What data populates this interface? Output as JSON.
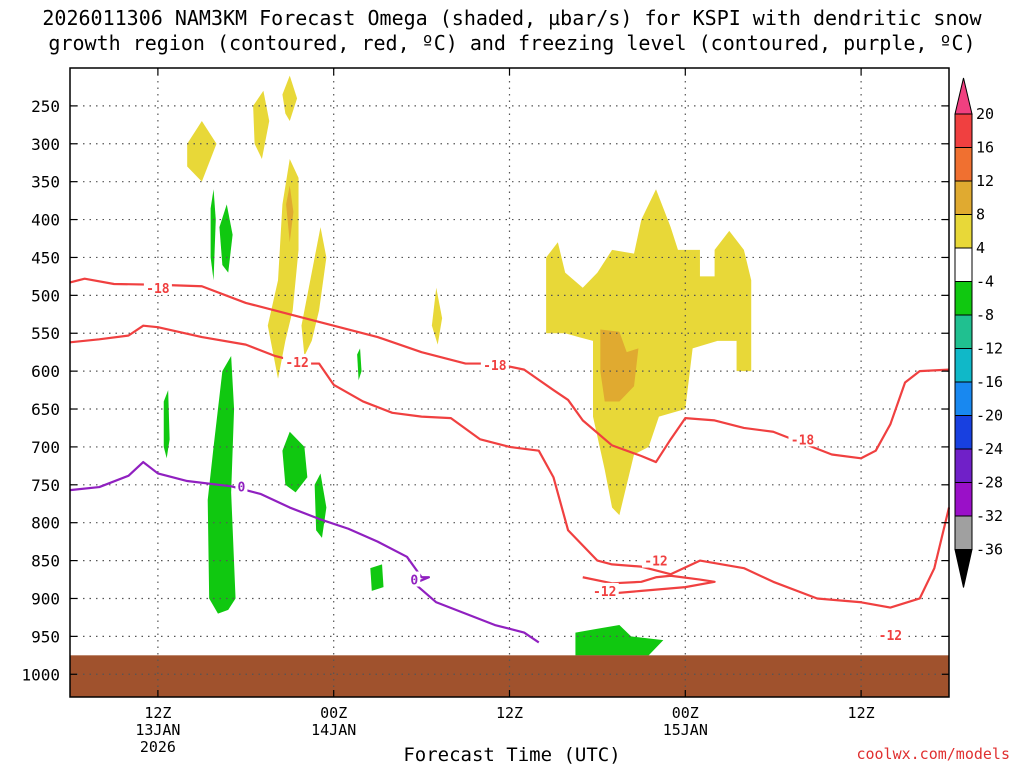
{
  "title_line1": "2026011306 NAM3KM Forecast Omega (shaded, µbar/s) for KSPI with dendritic snow",
  "title_line2": "growth region (contoured, red, ºC) and freezing level (contoured, purple, ºC)",
  "xlabel": "Forecast Time (UTC)",
  "credit": "coolwx.com/models",
  "colors": {
    "snow_growth": "#f04040",
    "freezing": "#9020c0",
    "ground": "#a0522d",
    "omega_pos_4": "#e8d838",
    "omega_pos_8": "#e0aa30",
    "omega_neg_4": "#10c810"
  },
  "chart_data": {
    "type": "heatmap",
    "x_axis": {
      "range_hours": [
        -6,
        54
      ],
      "ticks": [
        {
          "hour": 0,
          "label": "12Z",
          "label2": "13JAN",
          "label3": "2026"
        },
        {
          "hour": 12,
          "label": "00Z",
          "label2": "14JAN",
          "label3": ""
        },
        {
          "hour": 24,
          "label": "12Z",
          "label2": "",
          "label3": ""
        },
        {
          "hour": 36,
          "label": "00Z",
          "label2": "15JAN",
          "label3": ""
        },
        {
          "hour": 48,
          "label": "12Z",
          "label2": "",
          "label3": ""
        }
      ]
    },
    "y_axis": {
      "unit": "hPa",
      "scale": "pressure",
      "range": [
        200,
        1030
      ],
      "ticks": [
        250,
        300,
        350,
        400,
        450,
        500,
        550,
        600,
        650,
        700,
        750,
        800,
        850,
        900,
        950,
        1000
      ],
      "grid": "dotted"
    },
    "colorbar": {
      "labels": [
        20,
        16,
        12,
        8,
        4,
        -4,
        -8,
        -12,
        -16,
        -20,
        -24,
        -28,
        -32,
        -36
      ],
      "colors": [
        "#f04080",
        "#f04040",
        "#f07030",
        "#e0aa30",
        "#e8d838",
        "#ffffff",
        "#10c810",
        "#20c090",
        "#10b8c8",
        "#1888f0",
        "#1840e0",
        "#7020c8",
        "#9a10c8",
        "#a0a0a0",
        "#000000"
      ]
    },
    "contour_labels": [
      {
        "text": "-18",
        "hour": 0,
        "p": 490,
        "color": "snow_growth"
      },
      {
        "text": "-12",
        "hour": 9.5,
        "p": 588,
        "color": "snow_growth"
      },
      {
        "text": "-18",
        "hour": 23,
        "p": 592,
        "color": "snow_growth"
      },
      {
        "text": "-18",
        "hour": 44,
        "p": 690,
        "color": "snow_growth"
      },
      {
        "text": "-12",
        "hour": 34,
        "p": 850,
        "color": "snow_growth"
      },
      {
        "text": "-12",
        "hour": 30.5,
        "p": 890,
        "color": "snow_growth"
      },
      {
        "text": "-12",
        "hour": 50,
        "p": 948,
        "color": "snow_growth"
      },
      {
        "text": "0",
        "hour": 5.7,
        "p": 752,
        "color": "freezing"
      },
      {
        "text": "0",
        "hour": 17.5,
        "p": 875,
        "color": "freezing"
      }
    ],
    "contours": [
      {
        "name": "-18 upper",
        "color": "snow_growth",
        "points": [
          [
            -6,
            483
          ],
          [
            -5,
            478
          ],
          [
            -3,
            485
          ],
          [
            0,
            486
          ],
          [
            3,
            488
          ],
          [
            6,
            510
          ],
          [
            9,
            525
          ],
          [
            12,
            540
          ],
          [
            15,
            555
          ],
          [
            18,
            575
          ],
          [
            21,
            590
          ],
          [
            23,
            590
          ],
          [
            25,
            598
          ],
          [
            27,
            625
          ],
          [
            28,
            638
          ],
          [
            29,
            665
          ],
          [
            31,
            698
          ],
          [
            33,
            712
          ],
          [
            34,
            720
          ],
          [
            35,
            690
          ],
          [
            36,
            662
          ],
          [
            38,
            665
          ],
          [
            40,
            675
          ],
          [
            42,
            680
          ],
          [
            44,
            695
          ],
          [
            46,
            710
          ],
          [
            48,
            715
          ],
          [
            49,
            705
          ],
          [
            50,
            670
          ],
          [
            51,
            615
          ],
          [
            52,
            600
          ],
          [
            54,
            598
          ]
        ]
      },
      {
        "name": "-12",
        "color": "snow_growth",
        "points": [
          [
            -6,
            562
          ],
          [
            -4,
            558
          ],
          [
            -2,
            553
          ],
          [
            -1,
            540
          ],
          [
            0,
            542
          ],
          [
            3,
            555
          ],
          [
            6,
            565
          ],
          [
            8,
            580
          ],
          [
            10,
            590
          ],
          [
            11,
            590
          ],
          [
            12,
            618
          ],
          [
            14,
            640
          ],
          [
            16,
            655
          ],
          [
            18,
            660
          ],
          [
            20,
            662
          ],
          [
            22,
            690
          ],
          [
            24,
            700
          ],
          [
            26,
            705
          ],
          [
            27,
            740
          ],
          [
            28,
            810
          ],
          [
            30,
            850
          ],
          [
            31,
            855
          ],
          [
            33,
            858
          ],
          [
            35,
            868
          ],
          [
            37,
            850
          ],
          [
            40,
            860
          ],
          [
            42,
            878
          ],
          [
            45,
            900
          ],
          [
            48,
            905
          ],
          [
            50,
            912
          ],
          [
            52,
            900
          ],
          [
            53,
            860
          ],
          [
            53.5,
            820
          ],
          [
            54,
            780
          ]
        ]
      },
      {
        "name": "-12 lower",
        "color": "snow_growth",
        "points": [
          [
            29,
            872
          ],
          [
            31,
            880
          ],
          [
            33,
            878
          ],
          [
            34,
            872
          ],
          [
            35,
            870
          ],
          [
            37,
            875
          ],
          [
            38,
            878
          ],
          [
            36,
            885
          ],
          [
            33,
            890
          ],
          [
            30,
            895
          ]
        ]
      },
      {
        "name": "freezing 0",
        "color": "freezing",
        "points": [
          [
            -6,
            757
          ],
          [
            -4,
            753
          ],
          [
            -2,
            738
          ],
          [
            -1,
            720
          ],
          [
            0,
            735
          ],
          [
            2,
            745
          ],
          [
            5,
            752
          ],
          [
            7,
            762
          ],
          [
            9,
            780
          ],
          [
            11,
            795
          ],
          [
            13,
            808
          ],
          [
            15,
            825
          ],
          [
            17,
            845
          ],
          [
            18,
            872
          ],
          [
            18.5,
            872
          ],
          [
            17.5,
            880
          ],
          [
            19,
            905
          ],
          [
            21,
            920
          ],
          [
            23,
            935
          ],
          [
            25,
            945
          ],
          [
            26,
            958
          ]
        ]
      }
    ],
    "shaded_regions": [
      {
        "level": "omega_pos_4",
        "polygon": [
          [
            2,
            300
          ],
          [
            3,
            270
          ],
          [
            4,
            300
          ],
          [
            3,
            350
          ],
          [
            2,
            330
          ]
        ]
      },
      {
        "level": "omega_pos_4",
        "polygon": [
          [
            6.5,
            250
          ],
          [
            7.2,
            230
          ],
          [
            7.6,
            270
          ],
          [
            7.1,
            320
          ],
          [
            6.6,
            300
          ]
        ]
      },
      {
        "level": "omega_pos_4",
        "polygon": [
          [
            8.5,
            235
          ],
          [
            9.0,
            210
          ],
          [
            9.5,
            240
          ],
          [
            9.0,
            270
          ],
          [
            8.7,
            260
          ]
        ]
      },
      {
        "level": "omega_pos_4",
        "polygon": [
          [
            7.5,
            540
          ],
          [
            8.2,
            480
          ],
          [
            8.5,
            380
          ],
          [
            9.0,
            320
          ],
          [
            9.6,
            345
          ],
          [
            9.6,
            440
          ],
          [
            9.2,
            520
          ],
          [
            8.7,
            560
          ],
          [
            8.2,
            610
          ]
        ]
      },
      {
        "level": "omega_pos_4",
        "polygon": [
          [
            9.8,
            540
          ],
          [
            10.5,
            470
          ],
          [
            11.1,
            410
          ],
          [
            11.5,
            450
          ],
          [
            11.0,
            520
          ],
          [
            10.5,
            560
          ],
          [
            10.0,
            580
          ]
        ]
      },
      {
        "level": "omega_pos_4",
        "polygon": [
          [
            18.7,
            540
          ],
          [
            19.0,
            490
          ],
          [
            19.4,
            530
          ],
          [
            19.1,
            565
          ]
        ]
      },
      {
        "level": "omega_pos_4",
        "polygon": [
          [
            26.5,
            550
          ],
          [
            26.5,
            450
          ],
          [
            27.3,
            430
          ],
          [
            27.8,
            470
          ],
          [
            29,
            490
          ],
          [
            30,
            470
          ],
          [
            31,
            440
          ],
          [
            32.5,
            445
          ],
          [
            33,
            400
          ],
          [
            34,
            360
          ],
          [
            35,
            410
          ],
          [
            35.5,
            440
          ],
          [
            36,
            440
          ],
          [
            37,
            440
          ],
          [
            37,
            475
          ],
          [
            38,
            475
          ],
          [
            38,
            440
          ],
          [
            39,
            415
          ],
          [
            40,
            440
          ],
          [
            40.5,
            480
          ],
          [
            40.5,
            600
          ],
          [
            39.5,
            600
          ],
          [
            39.5,
            560
          ],
          [
            38.2,
            560
          ],
          [
            36.5,
            570
          ],
          [
            36,
            650
          ],
          [
            34.2,
            660
          ],
          [
            33.5,
            700
          ],
          [
            32.5,
            710
          ],
          [
            31.5,
            790
          ],
          [
            31,
            780
          ],
          [
            30.5,
            730
          ],
          [
            29.7,
            660
          ],
          [
            29.7,
            560
          ],
          [
            28.7,
            555
          ],
          [
            27.8,
            550
          ]
        ]
      },
      {
        "level": "omega_pos_8",
        "polygon": [
          [
            30.2,
            545
          ],
          [
            31.5,
            548
          ],
          [
            32,
            575
          ],
          [
            32.8,
            570
          ],
          [
            32.5,
            620
          ],
          [
            31.5,
            640
          ],
          [
            30.5,
            640
          ],
          [
            30.2,
            600
          ]
        ]
      },
      {
        "level": "omega_pos_8",
        "polygon": [
          [
            8.75,
            380
          ],
          [
            9.0,
            355
          ],
          [
            9.25,
            390
          ],
          [
            9.0,
            430
          ]
        ]
      },
      {
        "level": "omega_neg_4",
        "polygon": [
          [
            4.2,
            410
          ],
          [
            4.7,
            380
          ],
          [
            5.1,
            420
          ],
          [
            4.8,
            470
          ],
          [
            4.4,
            460
          ]
        ]
      },
      {
        "level": "omega_neg_4",
        "polygon": [
          [
            3.6,
            385
          ],
          [
            3.8,
            360
          ],
          [
            3.95,
            400
          ],
          [
            3.8,
            480
          ],
          [
            3.6,
            450
          ]
        ]
      },
      {
        "level": "omega_neg_4",
        "polygon": [
          [
            0.4,
            640
          ],
          [
            0.7,
            625
          ],
          [
            0.8,
            690
          ],
          [
            0.6,
            715
          ],
          [
            0.4,
            700
          ]
        ]
      },
      {
        "level": "omega_neg_4",
        "polygon": [
          [
            3.4,
            770
          ],
          [
            3.8,
            700
          ],
          [
            4.4,
            600
          ],
          [
            5.0,
            580
          ],
          [
            5.2,
            650
          ],
          [
            5.0,
            760
          ],
          [
            5.3,
            900
          ],
          [
            4.8,
            915
          ],
          [
            4.1,
            920
          ],
          [
            3.5,
            900
          ]
        ]
      },
      {
        "level": "omega_neg_4",
        "polygon": [
          [
            8.5,
            705
          ],
          [
            9.0,
            680
          ],
          [
            10.0,
            700
          ],
          [
            10.2,
            740
          ],
          [
            9.4,
            760
          ],
          [
            8.7,
            750
          ]
        ]
      },
      {
        "level": "omega_neg_4",
        "polygon": [
          [
            10.7,
            750
          ],
          [
            11.1,
            735
          ],
          [
            11.5,
            780
          ],
          [
            11.2,
            820
          ],
          [
            10.8,
            810
          ]
        ]
      },
      {
        "level": "omega_neg_4",
        "polygon": [
          [
            13.6,
            578
          ],
          [
            13.8,
            570
          ],
          [
            13.9,
            600
          ],
          [
            13.7,
            612
          ]
        ]
      },
      {
        "level": "omega_neg_4",
        "polygon": [
          [
            14.5,
            860
          ],
          [
            15.3,
            855
          ],
          [
            15.4,
            885
          ],
          [
            14.6,
            890
          ]
        ]
      },
      {
        "level": "omega_neg_4",
        "polygon": [
          [
            28.5,
            945
          ],
          [
            30.0,
            940
          ],
          [
            31.5,
            935
          ],
          [
            32.3,
            950
          ],
          [
            34.5,
            955
          ],
          [
            33.5,
            975
          ],
          [
            28.5,
            975
          ]
        ]
      }
    ],
    "ground": {
      "top_p": 975,
      "level": "ground"
    }
  }
}
